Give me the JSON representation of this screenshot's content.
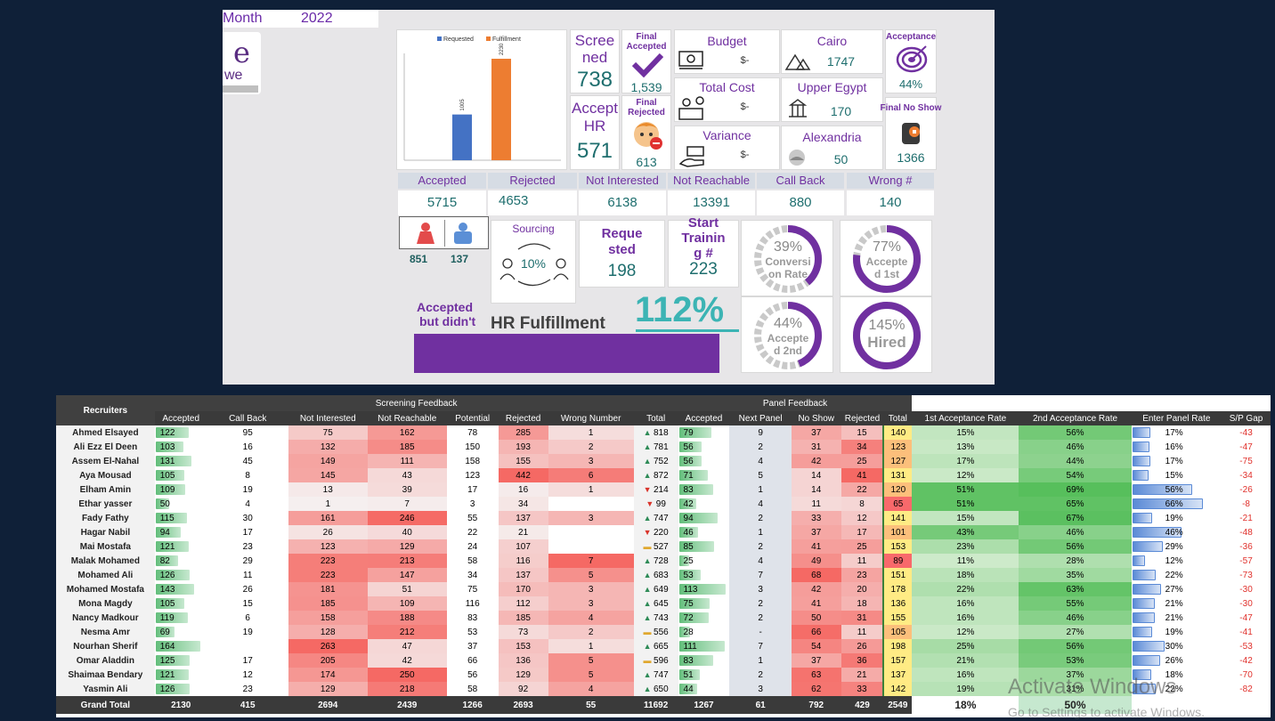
{
  "header": {
    "month_label": "Month",
    "year": "2022"
  },
  "logo": {
    "mark": "e",
    "text": "we"
  },
  "mini_chart": {
    "legend": [
      "Requested",
      "Fulfillment"
    ],
    "colors": [
      "#4472c4",
      "#ed7d31"
    ],
    "values": [
      1005,
      2230
    ],
    "labels": [
      "1005",
      "2230"
    ]
  },
  "kpis": {
    "screened": {
      "label_1": "Scree",
      "label_2": "ned",
      "value": "738"
    },
    "final_accepted": {
      "label_1": "Final",
      "label_2": "Accepted",
      "value": "1,539"
    },
    "accepted_hr": {
      "label_1": "Accept",
      "label_2": "HR",
      "value": "571"
    },
    "final_rejected": {
      "label_1": "Final",
      "label_2": "Rejected",
      "value": "613"
    },
    "budget": {
      "label": "Budget",
      "value": "$-"
    },
    "total_cost": {
      "label": "Total Cost",
      "value": "$-"
    },
    "variance": {
      "label": "Variance",
      "value": "$-"
    },
    "cairo": {
      "label": "Cairo",
      "value": "1747"
    },
    "upper_egypt": {
      "label": "Upper Egypt",
      "value": "170"
    },
    "alexandria": {
      "label": "Alexandria",
      "value": "50"
    },
    "acceptance": {
      "label": "Acceptance",
      "value": "44%"
    },
    "final_no_show": {
      "label": "Final No Show",
      "value": "1366"
    }
  },
  "status_row": {
    "headers": [
      "Accepted",
      "Rejected",
      "Not Interested",
      "Not Reachable",
      "Call Back",
      "Wrong #"
    ],
    "values": [
      "5715",
      "4653",
      "6138",
      "13391",
      "880",
      "140"
    ]
  },
  "gender": {
    "female": "851",
    "male": "137"
  },
  "sourcing": {
    "label": "Sourcing",
    "value": "10%"
  },
  "requested": {
    "label_1": "Reque",
    "label_2": "sted",
    "value": "198"
  },
  "start_training": {
    "label_1": "Start",
    "label_2": "Trainin",
    "label_3": "g #",
    "value": "223"
  },
  "rings": [
    {
      "pct": "39%",
      "fill": 0.39,
      "l1": "Conversi",
      "l2": "on Rate"
    },
    {
      "pct": "77%",
      "fill": 0.77,
      "l1": "Accepte",
      "l2": "d 1st"
    },
    {
      "pct": "44%",
      "fill": 0.44,
      "l1": "Accepte",
      "l2": "d 2nd"
    },
    {
      "pct": "145%",
      "fill": 1.0,
      "l1": "Hired",
      "l2": ""
    }
  ],
  "accepted_but": {
    "label_1": "Accepted",
    "label_2": "but didn't"
  },
  "hr_fulfillment": {
    "label": "HR Fulfillment",
    "value": "112%"
  },
  "table": {
    "group_headers": {
      "recruiters": "Recruiters",
      "screening": "Screening Feedback",
      "panel": "Panel Feedback"
    },
    "columns": [
      "Accepted",
      "Call Back",
      "Not Interested",
      "Not Reachable",
      "Potential",
      "Rejected",
      "Wrong Number",
      "Total",
      "Accepted",
      "Next Panel",
      "No Show",
      "Rejected",
      "Total",
      "1st Acceptance Rate",
      "2nd Acceptance Rate",
      "Enter Panel Rate",
      "S/P Gap"
    ],
    "rows": [
      [
        "Ahmed Elsayed",
        "122",
        "95",
        "75",
        "162",
        "78",
        "285",
        "1",
        "818",
        "79",
        "9",
        "37",
        "15",
        "140",
        "15%",
        "56%",
        "17%",
        "-43"
      ],
      [
        "Ali Ezz El Deen",
        "103",
        "16",
        "132",
        "185",
        "150",
        "193",
        "2",
        "781",
        "56",
        "2",
        "31",
        "34",
        "123",
        "13%",
        "46%",
        "16%",
        "-47"
      ],
      [
        "Assem El-Nahal",
        "131",
        "45",
        "149",
        "111",
        "158",
        "155",
        "3",
        "752",
        "56",
        "4",
        "42",
        "25",
        "127",
        "17%",
        "44%",
        "17%",
        "-75"
      ],
      [
        "Aya Mousad",
        "105",
        "8",
        "145",
        "43",
        "123",
        "442",
        "6",
        "872",
        "71",
        "5",
        "14",
        "41",
        "131",
        "12%",
        "54%",
        "15%",
        "-34"
      ],
      [
        "Elham Amin",
        "109",
        "19",
        "13",
        "39",
        "17",
        "16",
        "1",
        "214",
        "83",
        "1",
        "14",
        "22",
        "120",
        "51%",
        "69%",
        "56%",
        "-26"
      ],
      [
        "Ethar yasser",
        "50",
        "4",
        "1",
        "7",
        "3",
        "34",
        "",
        "99",
        "42",
        "4",
        "11",
        "8",
        "65",
        "51%",
        "65%",
        "66%",
        "-8"
      ],
      [
        "Fady Fathy",
        "115",
        "30",
        "161",
        "246",
        "55",
        "137",
        "3",
        "747",
        "94",
        "2",
        "33",
        "12",
        "141",
        "15%",
        "67%",
        "19%",
        "-21"
      ],
      [
        "Hagar Nabil",
        "94",
        "17",
        "26",
        "40",
        "22",
        "21",
        "",
        "220",
        "46",
        "1",
        "37",
        "17",
        "101",
        "43%",
        "46%",
        "46%",
        "-48"
      ],
      [
        "Mai Mostafa",
        "121",
        "23",
        "123",
        "129",
        "24",
        "107",
        "",
        "527",
        "85",
        "2",
        "41",
        "25",
        "153",
        "23%",
        "56%",
        "29%",
        "-36"
      ],
      [
        "Malak Mohamed",
        "82",
        "29",
        "223",
        "213",
        "58",
        "116",
        "7",
        "728",
        "25",
        "4",
        "49",
        "11",
        "89",
        "11%",
        "28%",
        "12%",
        "-57"
      ],
      [
        "Mohamed Ali",
        "126",
        "11",
        "223",
        "147",
        "34",
        "137",
        "5",
        "683",
        "53",
        "7",
        "68",
        "23",
        "151",
        "18%",
        "35%",
        "22%",
        "-73"
      ],
      [
        "Mohamed Mostafa",
        "143",
        "26",
        "181",
        "51",
        "75",
        "170",
        "3",
        "649",
        "113",
        "3",
        "42",
        "20",
        "178",
        "22%",
        "63%",
        "27%",
        "-30"
      ],
      [
        "Mona Magdy",
        "105",
        "15",
        "185",
        "109",
        "116",
        "112",
        "3",
        "645",
        "75",
        "2",
        "41",
        "18",
        "136",
        "16%",
        "55%",
        "21%",
        "-30"
      ],
      [
        "Nancy Madkour",
        "119",
        "6",
        "158",
        "188",
        "83",
        "185",
        "4",
        "743",
        "72",
        "2",
        "50",
        "31",
        "155",
        "16%",
        "46%",
        "21%",
        "-47"
      ],
      [
        "Nesma Amr",
        "69",
        "19",
        "128",
        "212",
        "53",
        "73",
        "2",
        "556",
        "28",
        "-",
        "66",
        "11",
        "105",
        "12%",
        "27%",
        "19%",
        "-41"
      ],
      [
        "Nourhan Sherif",
        "164",
        "",
        "263",
        "47",
        "37",
        "153",
        "1",
        "665",
        "111",
        "7",
        "54",
        "26",
        "198",
        "25%",
        "56%",
        "30%",
        "-53"
      ],
      [
        "Omar Aladdin",
        "125",
        "17",
        "205",
        "42",
        "66",
        "136",
        "5",
        "596",
        "83",
        "1",
        "37",
        "36",
        "157",
        "21%",
        "53%",
        "26%",
        "-42"
      ],
      [
        "Shaimaa Bendary",
        "121",
        "12",
        "174",
        "250",
        "56",
        "129",
        "5",
        "747",
        "51",
        "2",
        "63",
        "21",
        "137",
        "16%",
        "37%",
        "18%",
        "-70"
      ],
      [
        "Yasmin Ali",
        "126",
        "23",
        "129",
        "218",
        "58",
        "92",
        "4",
        "650",
        "44",
        "3",
        "62",
        "33",
        "142",
        "19%",
        "31%",
        "22%",
        "-82"
      ]
    ],
    "grand_total": [
      "Grand Total",
      "2130",
      "415",
      "2694",
      "2439",
      "1266",
      "2693",
      "55",
      "11692",
      "1267",
      "61",
      "792",
      "429",
      "2549",
      "18%",
      "50%",
      "",
      ""
    ]
  },
  "watermark": {
    "line1": "Activate Windows",
    "line2": "Go to Settings to activate Windows."
  }
}
